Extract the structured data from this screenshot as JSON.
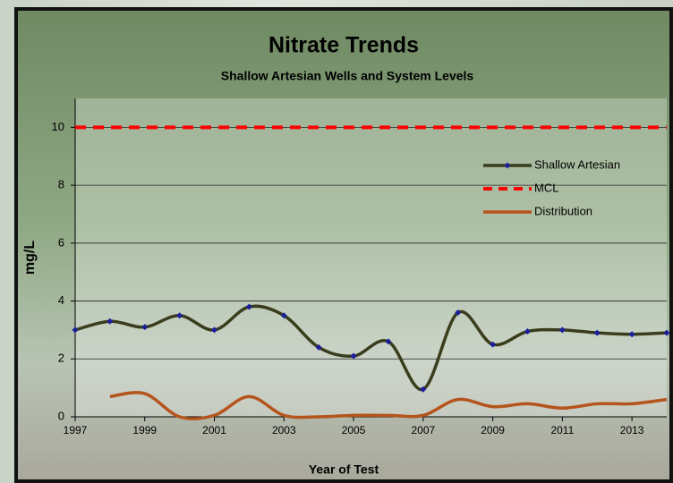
{
  "chart_data": {
    "type": "line",
    "title": "Nitrate Trends",
    "subtitle": "Shallow Artesian Wells and System Levels",
    "x_label": "Year of Test",
    "y_label": "mg/L",
    "x": [
      1997,
      1998,
      1999,
      2000,
      2001,
      2002,
      2003,
      2004,
      2005,
      2006,
      2007,
      2008,
      2009,
      2010,
      2011,
      2012,
      2013,
      2014
    ],
    "series": [
      {
        "name": "Shallow Artesian",
        "color": "#3a3d1c",
        "marker_color": "#1c1f9a",
        "markers": true,
        "dashed": false,
        "values": [
          3.0,
          3.3,
          3.1,
          3.5,
          3.0,
          3.8,
          3.5,
          2.4,
          2.1,
          2.6,
          0.95,
          3.6,
          2.5,
          2.95,
          3.0,
          2.9,
          2.85,
          2.9
        ]
      },
      {
        "name": "MCL",
        "color": "#ff0000",
        "markers": false,
        "dashed": true,
        "values": [
          10,
          10,
          10,
          10,
          10,
          10,
          10,
          10,
          10,
          10,
          10,
          10,
          10,
          10,
          10,
          10,
          10,
          10
        ]
      },
      {
        "name": "Distribution",
        "color": "#b5541c",
        "markers": false,
        "dashed": false,
        "values": [
          null,
          0.7,
          0.8,
          0.0,
          0.05,
          0.7,
          0.05,
          0.0,
          0.05,
          0.05,
          0.05,
          0.6,
          0.35,
          0.45,
          0.3,
          0.45,
          0.45,
          0.6
        ]
      }
    ],
    "xlim": [
      1997,
      2014
    ],
    "xticks": [
      1997,
      1999,
      2001,
      2003,
      2005,
      2007,
      2009,
      2011,
      2013
    ],
    "ylim": [
      0,
      11
    ],
    "yticks": [
      0,
      2,
      4,
      6,
      8,
      10
    ],
    "grid": true,
    "smooth": true,
    "legend": "upper right"
  }
}
